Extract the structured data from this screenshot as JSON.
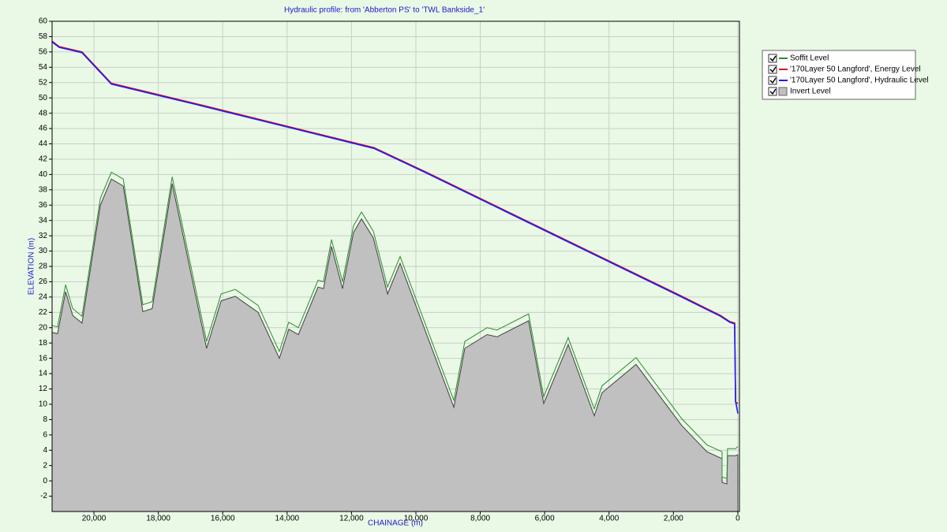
{
  "chart_data": {
    "type": "line",
    "title": "Hydraulic profile: from 'Abberton PS' to 'TWL Bankside_1'",
    "x_label": "CHAINAGE (m)",
    "y_label": "ELEVATION (m)",
    "xlim": [
      21300,
      -50
    ],
    "ylim": [
      -4,
      60
    ],
    "xticks": [
      {
        "value": 20000,
        "label": "20,000"
      },
      {
        "value": 18000,
        "label": "18,000"
      },
      {
        "value": 16000,
        "label": "16,000"
      },
      {
        "value": 14000,
        "label": "14,000"
      },
      {
        "value": 12000,
        "label": "12,000"
      },
      {
        "value": 10000,
        "label": "10,000"
      },
      {
        "value": 8000,
        "label": "8,000"
      },
      {
        "value": 6000,
        "label": "6,000"
      },
      {
        "value": 4000,
        "label": "4,000"
      },
      {
        "value": 2000,
        "label": "2,000"
      },
      0
    ],
    "yticks": [
      -2,
      0,
      2,
      4,
      6,
      8,
      10,
      12,
      14,
      16,
      18,
      20,
      22,
      24,
      26,
      28,
      30,
      32,
      34,
      36,
      38,
      40,
      42,
      44,
      46,
      48,
      50,
      52,
      54,
      56,
      58,
      60
    ],
    "grid": true,
    "legend": "outside-right",
    "series": [
      {
        "name": "Soffit Level",
        "color": "#2e8b2e",
        "style": "line",
        "x": [
          21300,
          21130,
          20880,
          20660,
          20370,
          19800,
          19460,
          19090,
          18480,
          18190,
          17570,
          16500,
          16050,
          15610,
          14900,
          14240,
          13950,
          13650,
          13040,
          12870,
          12620,
          12280,
          11940,
          11690,
          11320,
          10880,
          10490,
          8820,
          8480,
          7790,
          7480,
          6500,
          6030,
          5270,
          4460,
          4220,
          3160,
          1740,
          960,
          490,
          490,
          340,
          320,
          70,
          0
        ],
        "values": [
          20.3,
          20.1,
          25.6,
          22.5,
          21.5,
          36.9,
          40.3,
          39.4,
          23.0,
          23.4,
          39.7,
          18.2,
          24.4,
          25.0,
          22.9,
          16.9,
          20.7,
          20.0,
          26.2,
          26.0,
          31.5,
          26.0,
          33.3,
          35.1,
          32.6,
          25.3,
          29.3,
          10.5,
          18.2,
          20.0,
          19.7,
          21.8,
          11.0,
          18.7,
          9.4,
          12.4,
          16.1,
          8.1,
          4.7,
          3.8,
          0.5,
          0.3,
          4.2,
          4.2,
          4.5
        ]
      },
      {
        "name": "'170Layer 50 Langford', Energy Level",
        "color": "#e01010",
        "style": "line",
        "x": [
          21300,
          21080,
          20370,
          19460,
          16790,
          11300,
          9680,
          1790,
          540,
          250,
          100,
          70,
          0
        ],
        "values": [
          57.4,
          56.7,
          56.0,
          51.9,
          49.2,
          43.5,
          40.3,
          24.2,
          21.6,
          20.8,
          20.6,
          10.3,
          10.1
        ]
      },
      {
        "name": "'170Layer 50 Langford', Hydraulic Level",
        "color": "#1a1aff",
        "style": "line",
        "x": [
          21300,
          21080,
          20370,
          19460,
          16790,
          11300,
          9680,
          1790,
          540,
          250,
          100,
          70,
          0
        ],
        "values": [
          57.3,
          56.6,
          55.9,
          51.8,
          49.1,
          43.4,
          40.2,
          24.1,
          21.5,
          20.7,
          20.5,
          10.4,
          8.8
        ]
      },
      {
        "name": "Invert Level",
        "color": "#c0c0c0",
        "style": "area",
        "x": [
          21300,
          21130,
          20880,
          20660,
          20370,
          19800,
          19460,
          19090,
          18480,
          18190,
          17570,
          16500,
          16050,
          15610,
          14900,
          14240,
          13950,
          13650,
          13040,
          12870,
          12620,
          12280,
          11940,
          11690,
          11320,
          10880,
          10490,
          8820,
          8480,
          7790,
          7480,
          6500,
          6030,
          5270,
          4460,
          4220,
          3160,
          1740,
          960,
          490,
          490,
          340,
          320,
          70,
          0
        ],
        "values": [
          19.4,
          19.2,
          24.7,
          21.6,
          20.6,
          36.0,
          39.4,
          38.5,
          22.1,
          22.5,
          38.8,
          17.3,
          23.5,
          24.1,
          22.0,
          16.0,
          19.8,
          19.1,
          25.3,
          25.1,
          30.6,
          25.1,
          32.4,
          34.2,
          31.7,
          24.4,
          28.4,
          9.6,
          17.3,
          19.1,
          18.8,
          20.9,
          10.1,
          17.8,
          8.5,
          11.5,
          15.2,
          7.2,
          3.8,
          2.9,
          -0.2,
          -0.4,
          3.3,
          3.3,
          3.4
        ]
      }
    ]
  }
}
